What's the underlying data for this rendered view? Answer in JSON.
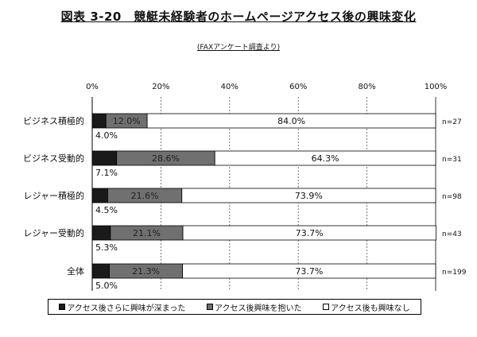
{
  "header": {
    "title": "図表 3-20　競艇未経験者のホームページアクセス後の興味変化",
    "subtitle": "(FAXアンケート調査より)"
  },
  "colors": {
    "series1": "#1a1a1a",
    "series2": "#707070",
    "series3": "#ffffff"
  },
  "chart_data": {
    "type": "bar",
    "orientation": "horizontal",
    "stacked": true,
    "title": "図表 3-20　競艇未経験者のホームページアクセス後の興味変化",
    "subtitle": "(FAXアンケート調査より)",
    "xlim": [
      0,
      100
    ],
    "x_ticks": [
      "0%",
      "20%",
      "40%",
      "60%",
      "80%",
      "100%"
    ],
    "grid": true,
    "legend_position": "bottom",
    "categories": [
      "ビジネス積極的",
      "ビジネス受動的",
      "レジャー積極的",
      "レジャー受動的",
      "全体"
    ],
    "n_labels": [
      "n=27",
      "n=31",
      "n=98",
      "n=43",
      "n=199"
    ],
    "series": [
      {
        "name": "アクセス後さらに興味が深まった",
        "values": [
          4.0,
          7.1,
          4.5,
          5.3,
          5.0
        ],
        "labels": [
          "4.0%",
          "7.1%",
          "4.5%",
          "5.3%",
          "5.0%"
        ]
      },
      {
        "name": "アクセス後興味を抱いた",
        "values": [
          12.0,
          28.6,
          21.6,
          21.1,
          21.3
        ],
        "labels": [
          "12.0%",
          "28.6%",
          "21.6%",
          "21.1%",
          "21.3%"
        ]
      },
      {
        "name": "アクセス後も興味なし",
        "values": [
          84.0,
          64.3,
          73.9,
          73.7,
          73.7
        ],
        "labels": [
          "84.0%",
          "64.3%",
          "73.9%",
          "73.7%",
          "73.7%"
        ]
      }
    ]
  }
}
